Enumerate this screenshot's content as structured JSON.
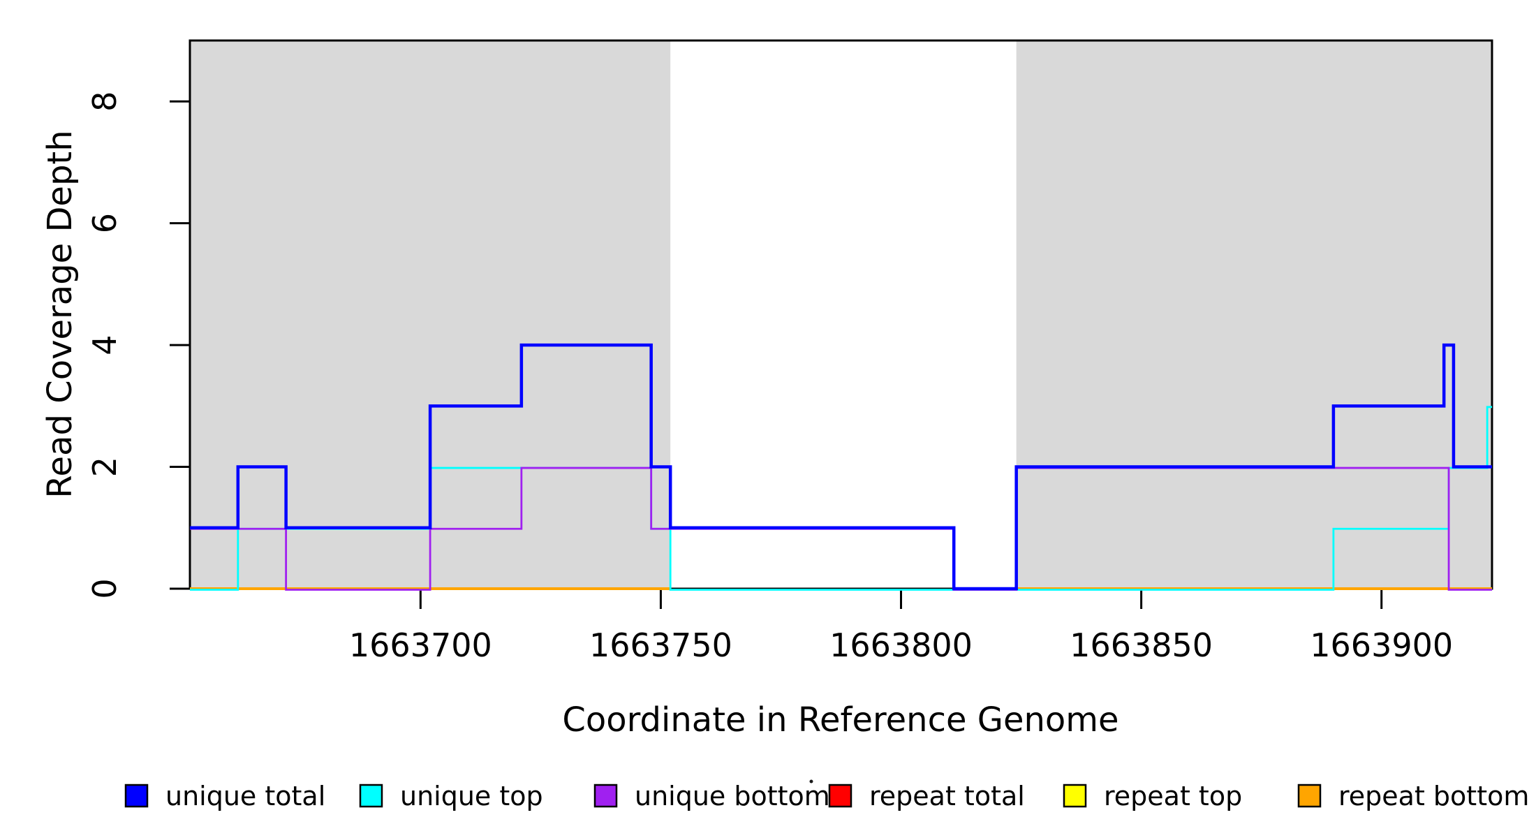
{
  "chart_data": {
    "type": "line",
    "subtype": "step-coverage",
    "title": "",
    "xlabel": "Coordinate in Reference Genome",
    "ylabel": "Read Coverage Depth",
    "xlim": [
      1663652,
      1663923
    ],
    "ylim": [
      0,
      9
    ],
    "x_ticks": [
      1663700,
      1663750,
      1663800,
      1663850,
      1663900
    ],
    "y_ticks": [
      0,
      2,
      4,
      6,
      8
    ],
    "grid": false,
    "legend_position": "bottom",
    "shade_color": "#D9D9D9",
    "axis_color": "#000000",
    "shaded_regions": [
      {
        "name": "repeat-region-1",
        "x0": 1663652,
        "x1": 1663752
      },
      {
        "name": "repeat-region-2",
        "x0": 1663824,
        "x1": 1663923
      }
    ],
    "series": [
      {
        "name": "unique total",
        "color": "#0000FF",
        "width": 4.5,
        "offset": 0,
        "parts": [
          {
            "steps": [
              [
                1663652,
                1
              ],
              [
                1663662,
                2
              ],
              [
                1663672,
                1
              ],
              [
                1663702,
                3
              ],
              [
                1663721,
                4
              ],
              [
                1663748,
                2
              ],
              [
                1663752,
                1
              ],
              [
                1663811,
                0
              ],
              [
                1663824,
                2
              ],
              [
                1663890,
                3
              ],
              [
                1663913,
                4
              ],
              [
                1663915,
                2
              ]
            ],
            "end": 1663923
          }
        ]
      },
      {
        "name": "unique top",
        "color": "#00FFFF",
        "width": 2.8,
        "offset": 1.5,
        "parts": [
          {
            "steps": [
              [
                1663652,
                0
              ],
              [
                1663662,
                1
              ],
              [
                1663702,
                2
              ],
              [
                1663748,
                1
              ],
              [
                1663752,
                0
              ],
              [
                1663890,
                1
              ],
              [
                1663914,
                2
              ],
              [
                1663922,
                3
              ]
            ],
            "end": 1663923
          }
        ]
      },
      {
        "name": "unique bottom",
        "color": "#A020F0",
        "width": 2.8,
        "offset": 1.5,
        "parts": [
          {
            "steps": [
              [
                1663652,
                1
              ],
              [
                1663672,
                0
              ],
              [
                1663702,
                1
              ],
              [
                1663721,
                2
              ],
              [
                1663748,
                1
              ],
              [
                1663811,
                0
              ],
              [
                1663824,
                2
              ],
              [
                1663914,
                0
              ]
            ],
            "end": 1663923
          }
        ]
      },
      {
        "name": "repeat total",
        "color": "#FF0000",
        "width": 3,
        "offset": 0,
        "parts": [
          {
            "steps": [
              [
                1663652,
                0
              ]
            ],
            "end": 1663752
          },
          {
            "steps": [
              [
                1663824,
                0
              ]
            ],
            "end": 1663923
          }
        ]
      },
      {
        "name": "repeat top",
        "color": "#FFFF00",
        "width": 3,
        "offset": 0,
        "parts": [
          {
            "steps": [
              [
                1663652,
                0
              ]
            ],
            "end": 1663752
          },
          {
            "steps": [
              [
                1663824,
                0
              ]
            ],
            "end": 1663923
          }
        ]
      },
      {
        "name": "repeat bottom",
        "color": "#FFA500",
        "width": 4,
        "offset": 0,
        "parts": [
          {
            "steps": [
              [
                1663652,
                0
              ]
            ],
            "end": 1663752
          },
          {
            "steps": [
              [
                1663824,
                0
              ]
            ],
            "end": 1663923
          }
        ]
      }
    ],
    "draw_order": [
      3,
      4,
      5,
      1,
      2,
      0
    ]
  },
  "legend": {
    "entries": [
      {
        "label": "unique total",
        "color": "#0000FF"
      },
      {
        "label": "unique top",
        "color": "#00FFFF"
      },
      {
        "label": "unique bottom",
        "color": "#A020F0"
      },
      {
        "label": "repeat total",
        "color": "#FF0000"
      },
      {
        "label": "repeat top",
        "color": "#FFFF00"
      },
      {
        "label": "repeat bottom",
        "color": "#FFA500"
      }
    ],
    "swatch_border": "#000000"
  }
}
